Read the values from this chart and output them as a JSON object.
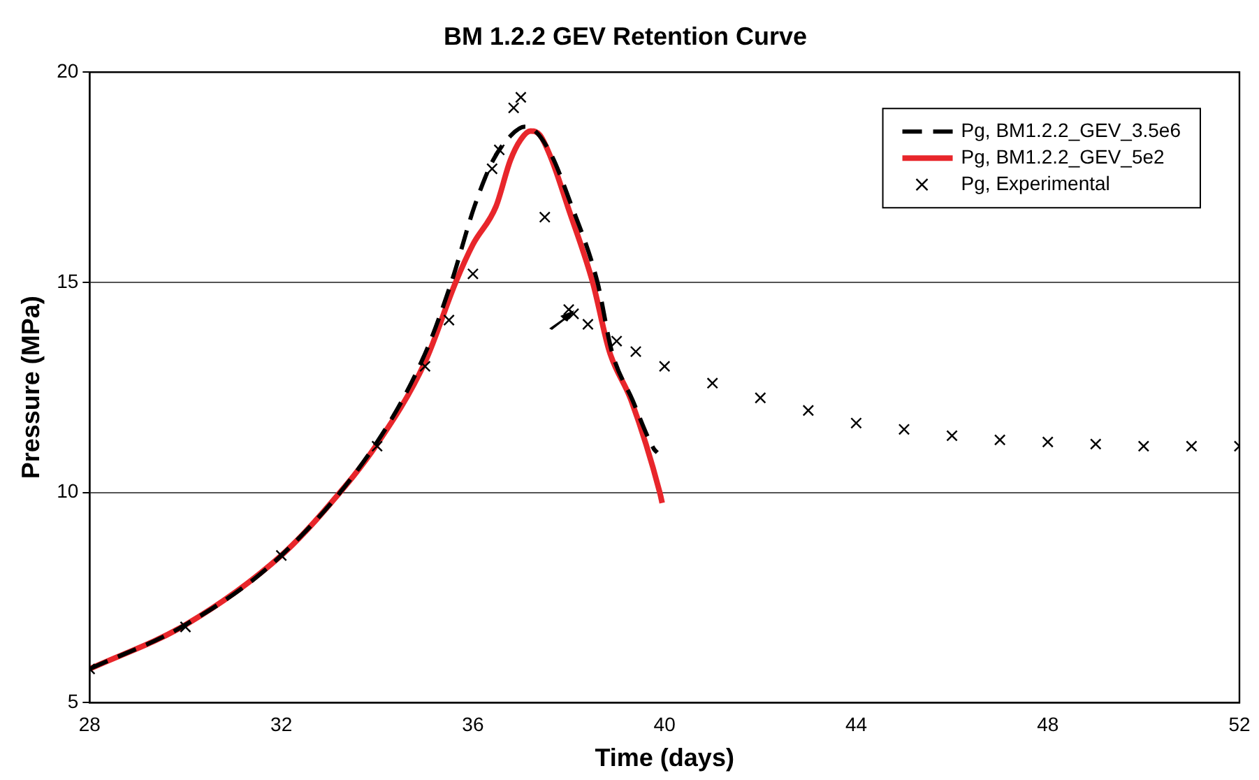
{
  "chart_data": {
    "type": "line",
    "title": "BM 1.2.2 GEV Retention Curve",
    "xlabel": "Time (days)",
    "ylabel": "Pressure (MPa)",
    "xlim": [
      28,
      52
    ],
    "xticks": [
      28,
      32,
      36,
      40,
      44,
      48,
      52
    ],
    "ylim": [
      5,
      20
    ],
    "yticks": [
      5,
      10,
      15,
      20
    ],
    "grid": "y",
    "legend": "top right",
    "series": [
      {
        "name": "Pg, BM1.2.2_GEV_3.5e6",
        "type": "line",
        "color": "#000000",
        "line_style": "dashed",
        "marker": "none",
        "x": [
          28,
          30,
          32,
          34,
          35,
          35.55,
          36.03,
          36.42,
          36.8,
          37.08,
          37.3,
          37.65,
          38.0,
          38.6,
          38.9,
          39.33,
          39.78,
          39.85
        ],
        "values": [
          5.8,
          6.85,
          8.5,
          11.2,
          13.3,
          15,
          16.8,
          17.9,
          18.5,
          18.7,
          18.6,
          18.0,
          17.0,
          15.0,
          13.35,
          12.2,
          11.03,
          10.95
        ]
      },
      {
        "name": "Pg, BM1.2.2_GEV_5e2",
        "type": "line",
        "color": "#e8262b",
        "line_style": "solid",
        "marker": "none",
        "x": [
          28,
          30,
          32,
          33,
          34,
          35,
          35.64,
          36,
          36.48,
          36.78,
          37.0,
          37.2,
          37.4,
          37.65,
          37.98,
          38.5,
          38.85,
          39.3,
          39.9,
          39.95
        ],
        "values": [
          5.8,
          6.85,
          8.5,
          9.7,
          11.15,
          13.1,
          15,
          15.9,
          16.8,
          17.9,
          18.4,
          18.6,
          18.5,
          17.9,
          16.8,
          15.0,
          13.35,
          12.2,
          10.0,
          9.75
        ]
      },
      {
        "name": "Pg, Experimental",
        "type": "scatter",
        "color": "#000000",
        "marker": "cross",
        "x": [
          28,
          30,
          32,
          34,
          35,
          35.5,
          36,
          36.4,
          36.55,
          36.85,
          37,
          37.5,
          38,
          38.1,
          38.4,
          39,
          39.4,
          40,
          41,
          42,
          43,
          44,
          45,
          46,
          47,
          48,
          49,
          50,
          51,
          52
        ],
        "values": [
          5.8,
          6.8,
          8.5,
          11.1,
          13.0,
          14.1,
          15.2,
          17.7,
          18.15,
          19.15,
          19.4,
          16.55,
          14.35,
          14.25,
          14.0,
          13.6,
          13.35,
          13.0,
          12.6,
          12.25,
          11.95,
          11.65,
          11.5,
          11.35,
          11.25,
          11.2,
          11.15,
          11.1,
          11.1,
          11.1
        ]
      }
    ]
  }
}
